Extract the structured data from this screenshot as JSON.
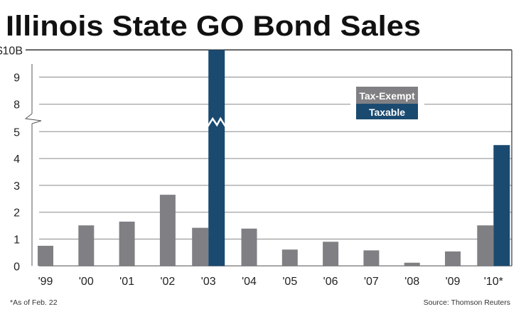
{
  "chart_data": {
    "type": "bar",
    "title": "Illinois State GO Bond Sales",
    "categories": [
      "'99",
      "'00",
      "'01",
      "'02",
      "'03",
      "'04",
      "'05",
      "'06",
      "'07",
      "'08",
      "'09",
      "'10*"
    ],
    "series": [
      {
        "name": "Tax-Exempt",
        "color": "#808084",
        "values": [
          0.75,
          1.51,
          1.65,
          2.65,
          1.42,
          1.39,
          0.61,
          0.9,
          0.58,
          0.12,
          0.54,
          1.51
        ]
      },
      {
        "name": "Taxable",
        "color": "#1b4a70",
        "values": [
          0,
          0,
          0,
          0,
          10,
          0,
          0,
          0,
          0,
          0,
          0,
          4.5
        ]
      }
    ],
    "yticks": [
      "0",
      "1",
      "2",
      "3",
      "4",
      "5",
      "8",
      "9",
      "$10B"
    ],
    "ylim": [
      0,
      10
    ],
    "axis_break": [
      5,
      8
    ],
    "grid": true,
    "legend_position": "top-right",
    "footnote": "*As of Feb. 22",
    "source": "Source: Thomson Reuters"
  }
}
